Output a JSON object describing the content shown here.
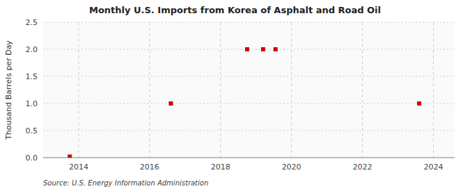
{
  "chart_data": {
    "type": "scatter",
    "title": "Monthly U.S. Imports from Korea of Asphalt and Road Oil",
    "ylabel": "Thousand Barrels per Day",
    "source": "Source: U.S. Energy Information Administration",
    "x": [
      2013.75,
      2016.6,
      2018.75,
      2019.2,
      2019.55,
      2023.6
    ],
    "values": [
      0.02,
      1.0,
      2.0,
      2.0,
      2.0,
      1.0
    ],
    "color": "#cc0000",
    "marker": "square",
    "xlim": [
      2013.0,
      2024.6
    ],
    "ylim": [
      0.0,
      2.5
    ],
    "xticks": [
      2014,
      2016,
      2018,
      2020,
      2022,
      2024
    ],
    "yticks": [
      {
        "value": 0.0,
        "label": "0.0"
      },
      0.5,
      {
        "value": 1.0,
        "label": "1.0"
      },
      1.5,
      {
        "value": 2.0,
        "label": "2.0"
      },
      2.5
    ],
    "grid": true
  }
}
